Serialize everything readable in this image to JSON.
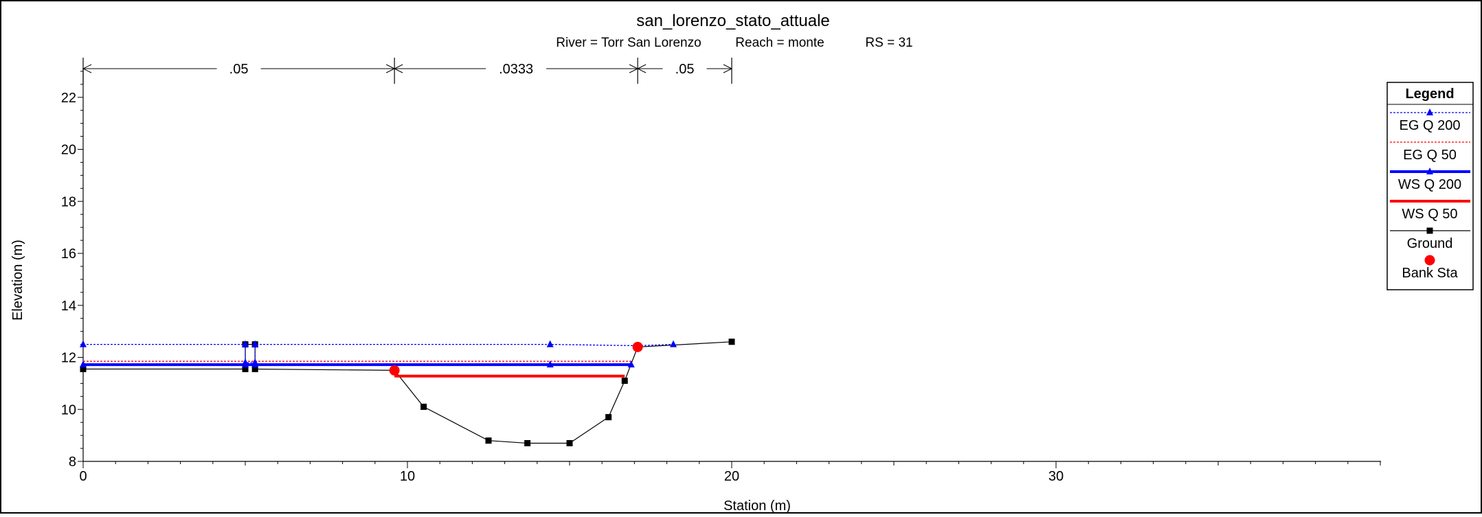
{
  "chart_data": {
    "type": "line",
    "title": "san_lorenzo_stato_attuale",
    "subtitle": {
      "river": "River = Torr San Lorenzo",
      "reach": "Reach = monte",
      "rs": "RS = 31"
    },
    "xlabel": "Station (m)",
    "ylabel": "Elevation (m)",
    "xlim": [
      0,
      40
    ],
    "ylim": [
      8,
      23
    ],
    "x_ticks": [
      0,
      10,
      20,
      30
    ],
    "y_ticks": [
      8,
      10,
      12,
      14,
      16,
      18,
      20,
      22
    ],
    "manning_n": [
      {
        "label": ".05",
        "from": 0,
        "to": 9.6
      },
      {
        "label": ".0333",
        "from": 9.6,
        "to": 17.1
      },
      {
        "label": ".05",
        "from": 17.1,
        "to": 20
      }
    ],
    "legend_title": "Legend",
    "legend_position": "right",
    "series": [
      {
        "name": "EG Q 200",
        "color": "#0000ff",
        "style": "dotted",
        "marker": "triangle",
        "points": [
          [
            0,
            12.5
          ],
          [
            5.0,
            12.5
          ],
          [
            5.0,
            11.8
          ],
          [
            5.3,
            11.8
          ],
          [
            5.3,
            12.5
          ],
          [
            14.4,
            12.5
          ],
          [
            17.1,
            12.45
          ],
          [
            18.2,
            12.5
          ]
        ]
      },
      {
        "name": "EG Q 50",
        "color": "#ff0000",
        "style": "dotted",
        "marker": "none",
        "points": [
          [
            0,
            11.85
          ],
          [
            5.0,
            11.85
          ],
          [
            5.3,
            11.85
          ],
          [
            16.9,
            11.85
          ]
        ]
      },
      {
        "name": "WS Q 200",
        "color": "#0000ff",
        "style": "solid-thick",
        "marker": "triangle",
        "points": [
          [
            0,
            11.72
          ],
          [
            5.0,
            11.72
          ],
          [
            5.3,
            11.72
          ],
          [
            14.4,
            11.72
          ],
          [
            16.9,
            11.72
          ]
        ]
      },
      {
        "name": "WS Q 50",
        "color": "#ff0000",
        "style": "solid-thick",
        "marker": "none",
        "points": [
          [
            9.6,
            11.28
          ],
          [
            16.7,
            11.28
          ]
        ]
      },
      {
        "name": "Ground",
        "color": "#000000",
        "style": "solid",
        "marker": "square",
        "points": [
          [
            0,
            11.55
          ],
          [
            5.0,
            11.55
          ],
          [
            5.0,
            12.5
          ],
          [
            5.3,
            12.5
          ],
          [
            5.3,
            11.55
          ],
          [
            9.6,
            11.5
          ],
          [
            10.5,
            10.1
          ],
          [
            12.5,
            8.8
          ],
          [
            13.7,
            8.7
          ],
          [
            15.0,
            8.7
          ],
          [
            16.2,
            9.7
          ],
          [
            16.7,
            11.1
          ],
          [
            17.1,
            12.4
          ],
          [
            20.0,
            12.6
          ]
        ]
      },
      {
        "name": "Bank Sta",
        "color": "#ff0000",
        "style": "none",
        "marker": "circle",
        "points": [
          [
            9.6,
            11.5
          ],
          [
            17.1,
            12.4
          ]
        ]
      }
    ]
  }
}
